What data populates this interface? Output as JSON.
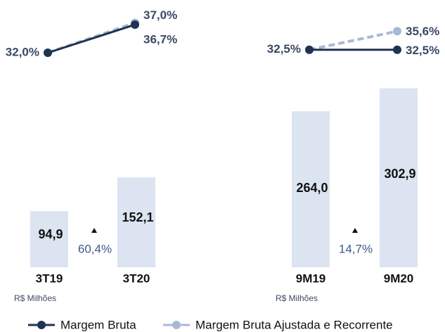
{
  "legend": [
    {
      "name": "Margem Bruta",
      "color": "#1f3352"
    },
    {
      "name": "Margem Bruta Ajustada e Recorrente",
      "color": "#a8b9d7"
    }
  ],
  "chart_data": [
    {
      "type": "bar",
      "categories": [
        "3T19",
        "3T20"
      ],
      "values": [
        94.9,
        152.1
      ],
      "value_labels": [
        "94,9",
        "152,1"
      ],
      "color": "#dbe4f0",
      "lines": [
        {
          "values": [
            32.0,
            36.7
          ],
          "value_labels": [
            "32,0%",
            "36,7%"
          ]
        },
        {
          "values": [
            32.0,
            37.0
          ],
          "value_labels": [
            null,
            "37,0%"
          ]
        }
      ],
      "annotation": "60,4%",
      "unit_label": "R$ Milhões"
    },
    {
      "type": "bar",
      "categories": [
        "9M19",
        "9M20"
      ],
      "values": [
        264.0,
        302.9
      ],
      "value_labels": [
        "264,0",
        "302,9"
      ],
      "color": "#dbe4f0",
      "lines": [
        {
          "values": [
            32.5,
            32.5
          ],
          "value_labels": [
            "32,5%",
            "32,5%"
          ]
        },
        {
          "values": [
            32.5,
            35.6
          ],
          "value_labels": [
            null,
            "35,6%"
          ]
        }
      ],
      "annotation": "14,7%",
      "unit_label": "R$ Milhões"
    }
  ]
}
